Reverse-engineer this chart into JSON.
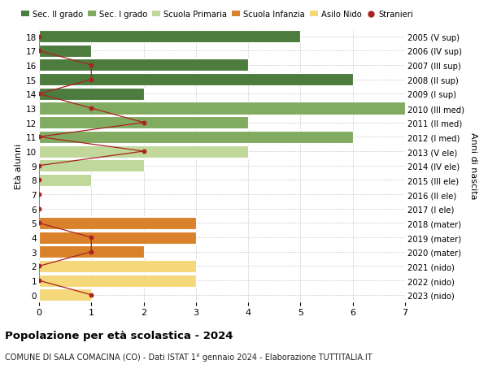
{
  "ages": [
    18,
    17,
    16,
    15,
    14,
    13,
    12,
    11,
    10,
    9,
    8,
    7,
    6,
    5,
    4,
    3,
    2,
    1,
    0
  ],
  "anni_nascita": [
    "2005 (V sup)",
    "2006 (IV sup)",
    "2007 (III sup)",
    "2008 (II sup)",
    "2009 (I sup)",
    "2010 (III med)",
    "2011 (II med)",
    "2012 (I med)",
    "2013 (V ele)",
    "2014 (IV ele)",
    "2015 (III ele)",
    "2016 (II ele)",
    "2017 (I ele)",
    "2018 (mater)",
    "2019 (mater)",
    "2020 (mater)",
    "2021 (nido)",
    "2022 (nido)",
    "2023 (nido)"
  ],
  "bar_values": [
    5,
    1,
    4,
    6,
    2,
    7,
    4,
    6,
    4,
    2,
    1,
    0,
    0,
    3,
    3,
    2,
    3,
    3,
    1
  ],
  "bar_colors": [
    "#4d7c3f",
    "#4d7c3f",
    "#4d7c3f",
    "#4d7c3f",
    "#4d7c3f",
    "#82ab62",
    "#82ab62",
    "#82ab62",
    "#c0d89a",
    "#c0d89a",
    "#c0d89a",
    "#c0d89a",
    "#c0d89a",
    "#d9822b",
    "#d9822b",
    "#d9822b",
    "#f5d87a",
    "#f5d87a",
    "#f5d87a"
  ],
  "stranieri_values": [
    0,
    0,
    1,
    1,
    0,
    1,
    2,
    0,
    2,
    0,
    0,
    0,
    0,
    0,
    1,
    1,
    0,
    0,
    1
  ],
  "legend_labels": [
    "Sec. II grado",
    "Sec. I grado",
    "Scuola Primaria",
    "Scuola Infanzia",
    "Asilo Nido",
    "Stranieri"
  ],
  "legend_colors": [
    "#4d7c3f",
    "#82ab62",
    "#c0d89a",
    "#d9822b",
    "#f5d87a",
    "#aa2222"
  ],
  "ylabel_left": "Età alunni",
  "ylabel_right": "Anni di nascita",
  "title": "Popolazione per età scolastica - 2024",
  "subtitle": "COMUNE DI SALA COMACINA (CO) - Dati ISTAT 1° gennaio 2024 - Elaborazione TUTTITALIA.IT",
  "xlim": [
    0,
    7
  ],
  "background_color": "#ffffff",
  "stranieri_color": "#aa2222",
  "grid_color": "#cccccc"
}
